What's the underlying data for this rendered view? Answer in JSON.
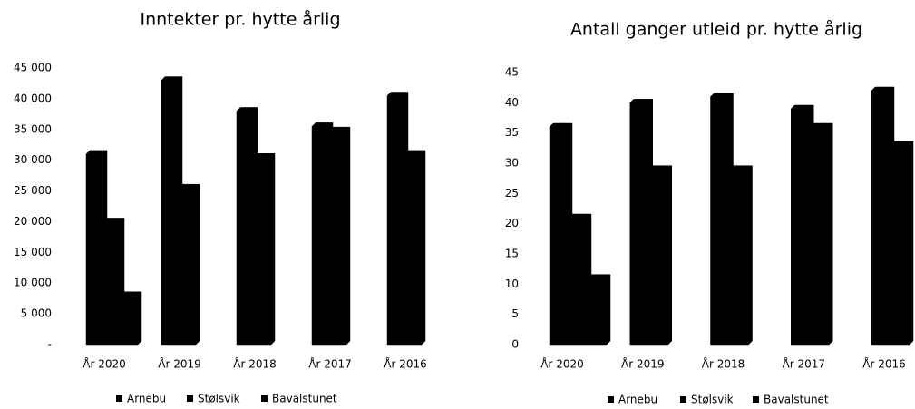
{
  "chart_data": [
    {
      "type": "bar",
      "title": "Inntekter pr. hytte årlig",
      "categories": [
        "År 2020",
        "År 2019",
        "År 2018",
        "År 2017",
        "År 2016"
      ],
      "series": [
        {
          "name": "Arnebu",
          "color": "#000000",
          "values": [
            31000,
            43000,
            38000,
            35500,
            40500
          ]
        },
        {
          "name": "Stølsvik",
          "color": "#000000",
          "values": [
            20000,
            25500,
            30500,
            34800,
            31000
          ]
        },
        {
          "name": "Bavalstunet",
          "color": "#000000",
          "values": [
            8000,
            null,
            null,
            null,
            null
          ]
        }
      ],
      "ylim": [
        0,
        45000
      ],
      "yticks": [
        {
          "value": 0,
          "label": "-"
        },
        {
          "value": 5000,
          "label": "5 000"
        },
        {
          "value": 10000,
          "label": "10 000"
        },
        {
          "value": 15000,
          "label": "15 000"
        },
        {
          "value": 20000,
          "label": "20 000"
        },
        {
          "value": 25000,
          "label": "25 000"
        },
        {
          "value": 30000,
          "label": "30 000"
        },
        {
          "value": 35000,
          "label": "35 000"
        },
        {
          "value": 40000,
          "label": "40 000"
        },
        {
          "value": 45000,
          "label": "45 000"
        }
      ],
      "grid": false,
      "legend": "bottom"
    },
    {
      "type": "bar",
      "title": "Antall ganger utleid pr. hytte årlig",
      "categories": [
        "År 2020",
        "År 2019",
        "År 2018",
        "År 2017",
        "År 2016"
      ],
      "series": [
        {
          "name": "Arnebu",
          "color": "#000000",
          "values": [
            36,
            40,
            41,
            39,
            42
          ]
        },
        {
          "name": "Stølsvik",
          "color": "#000000",
          "values": [
            21,
            29,
            29,
            36,
            33
          ]
        },
        {
          "name": "Bavalstunet",
          "color": "#000000",
          "values": [
            11,
            null,
            null,
            null,
            null
          ]
        }
      ],
      "ylim": [
        0,
        45
      ],
      "yticks": [
        0,
        5,
        10,
        15,
        20,
        25,
        30,
        35,
        40,
        45
      ],
      "grid": false,
      "legend": "bottom"
    }
  ]
}
